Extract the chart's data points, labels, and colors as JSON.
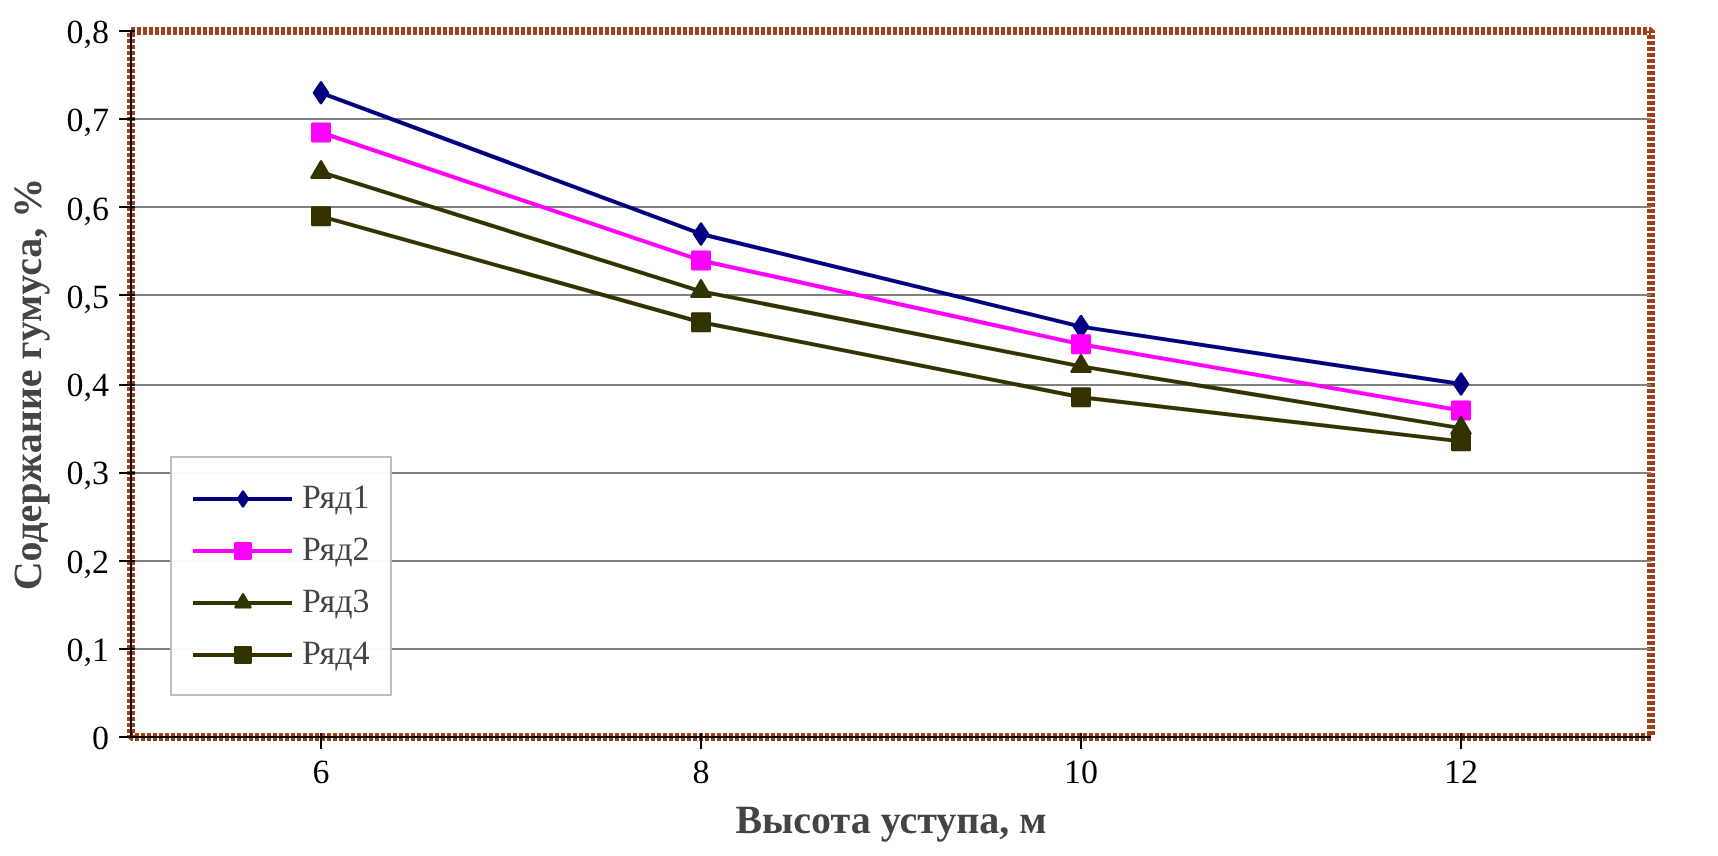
{
  "chart_data": {
    "type": "line",
    "xlabel": "Высота уступа, м",
    "ylabel": "Содержание гумуса, %",
    "categories": [
      "6",
      "8",
      "10",
      "12"
    ],
    "series": [
      {
        "name": "Ряд1",
        "color": "#000080",
        "marker": "diamond",
        "values": [
          0.73,
          0.57,
          0.465,
          0.4
        ]
      },
      {
        "name": "Ряд2",
        "color": "#ff00ff",
        "marker": "square",
        "values": [
          0.685,
          0.54,
          0.445,
          0.37
        ]
      },
      {
        "name": "Ряд3",
        "color": "#333300",
        "marker": "triangle",
        "values": [
          0.64,
          0.505,
          0.42,
          0.35
        ]
      },
      {
        "name": "Ряд4",
        "color": "#333300",
        "marker": "square",
        "values": [
          0.59,
          0.47,
          0.385,
          0.335
        ]
      }
    ],
    "ylim": [
      0,
      0.8
    ],
    "yticks": [
      {
        "value": 0,
        "label": "0"
      },
      {
        "value": 0.1,
        "label": "0,1"
      },
      {
        "value": 0.2,
        "label": "0,2"
      },
      {
        "value": 0.3,
        "label": "0,3"
      },
      {
        "value": 0.4,
        "label": "0,4"
      },
      {
        "value": 0.5,
        "label": "0,5"
      },
      {
        "value": 0.6,
        "label": "0,6"
      },
      {
        "value": 0.7,
        "label": "0,7"
      },
      {
        "value": 0.8,
        "label": "0,8"
      }
    ],
    "grid": "y",
    "legend": "bottom left",
    "line_style": "solid"
  }
}
